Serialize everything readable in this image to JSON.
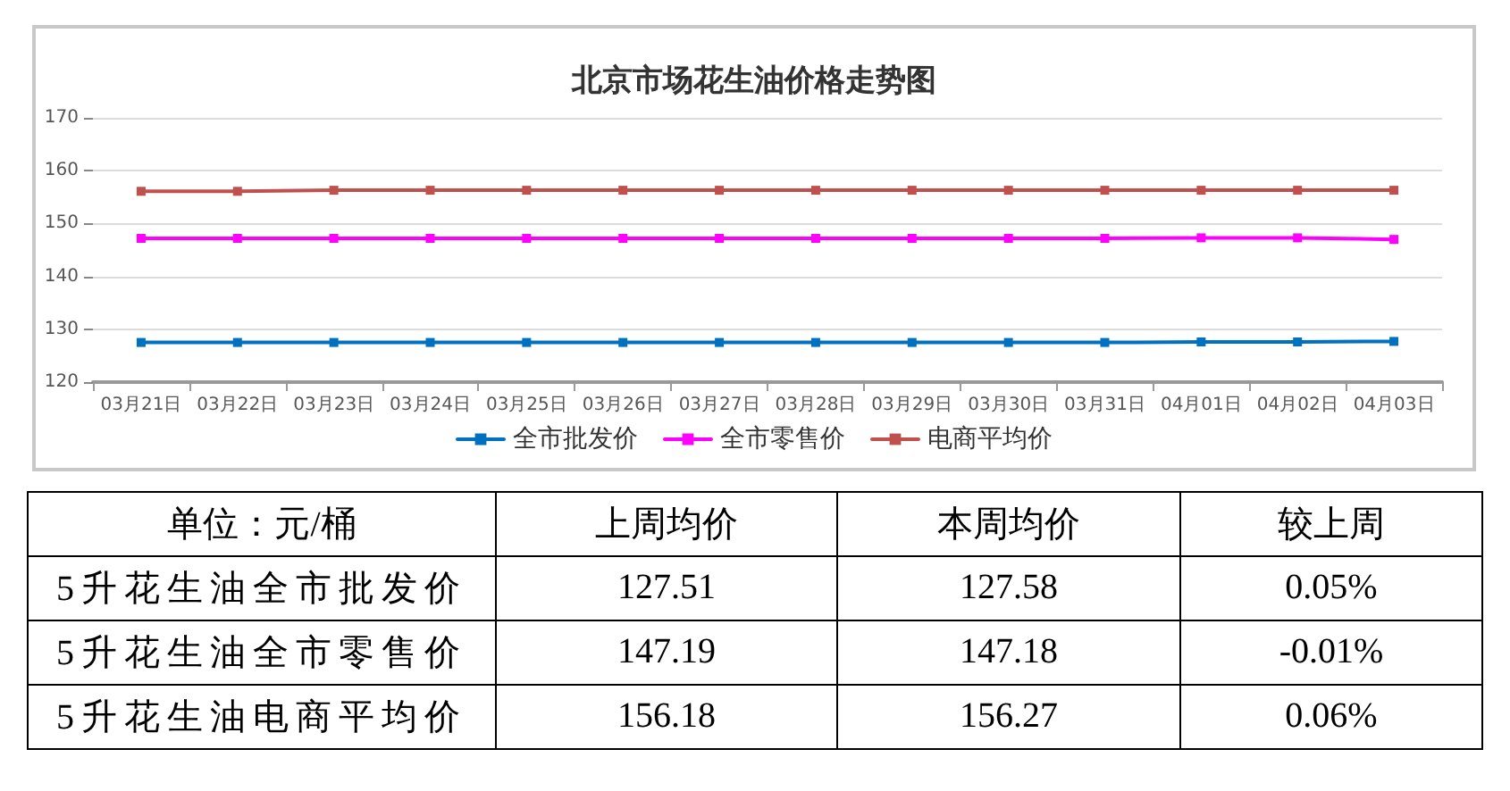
{
  "chart_data": {
    "type": "line",
    "title": "北京市场花生油价格走势图",
    "categories": [
      "03月21日",
      "03月22日",
      "03月23日",
      "03月24日",
      "03月25日",
      "03月26日",
      "03月27日",
      "03月28日",
      "03月29日",
      "03月30日",
      "03月31日",
      "04月01日",
      "04月02日",
      "04月03日"
    ],
    "series": [
      {
        "name": "全市批发价",
        "color": "#0070c0",
        "values": [
          127.5,
          127.5,
          127.5,
          127.5,
          127.5,
          127.5,
          127.5,
          127.5,
          127.5,
          127.5,
          127.5,
          127.6,
          127.6,
          127.7
        ]
      },
      {
        "name": "全市零售价",
        "color": "#ff00ff",
        "values": [
          147.2,
          147.2,
          147.2,
          147.2,
          147.2,
          147.2,
          147.2,
          147.2,
          147.2,
          147.2,
          147.2,
          147.3,
          147.3,
          147.0
        ]
      },
      {
        "name": "电商平均价",
        "color": "#c0504d",
        "values": [
          156.1,
          156.1,
          156.3,
          156.3,
          156.3,
          156.3,
          156.3,
          156.3,
          156.3,
          156.3,
          156.3,
          156.3,
          156.3,
          156.3
        ]
      }
    ],
    "ylim": [
      120,
      170
    ],
    "yticks": [
      120,
      130,
      140,
      150,
      160,
      170
    ],
    "grid": "y",
    "legend": "bottom",
    "marker": "square",
    "line_style": "solid",
    "annotations": [
      "单位：元/桶",
      "上周均价",
      "本周均价",
      "较上周",
      "5升花生油全市批发价",
      "127.51",
      "127.58",
      "0.05%",
      "5升花生油全市零售价",
      "147.19",
      "147.18",
      "-0.01%",
      "5升花生油电商平均价",
      "156.18",
      "156.27",
      "0.06%"
    ]
  }
}
